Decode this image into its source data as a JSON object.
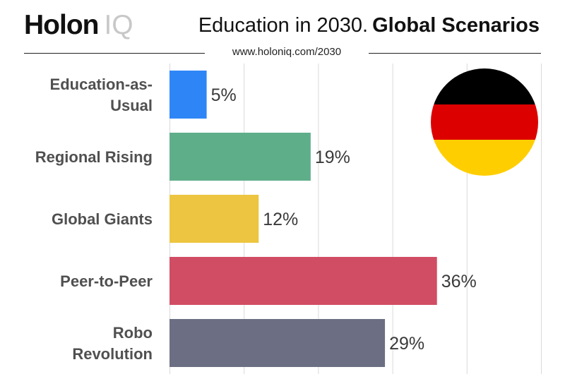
{
  "header": {
    "logo_main": "Holon",
    "logo_accent": "IQ",
    "title_light": "Education in 2030.",
    "title_bold": "Global Scenarios",
    "url": "www.holoniq.com/2030"
  },
  "flag": {
    "icon": "germany-flag-icon",
    "colors": [
      "#000000",
      "#dd0000",
      "#ffce00"
    ]
  },
  "chart_data": {
    "type": "bar",
    "orientation": "horizontal",
    "categories": [
      [
        "Education-as-",
        "Usual"
      ],
      [
        "Regional Rising"
      ],
      [
        "Global Giants"
      ],
      [
        "Peer-to-Peer"
      ],
      [
        "Robo",
        "Revolution"
      ]
    ],
    "values": [
      5,
      19,
      12,
      36,
      29
    ],
    "value_labels": [
      "5%",
      "19%",
      "12%",
      "36%",
      "29%"
    ],
    "colors": [
      "#2e86f6",
      "#5fae8a",
      "#edc540",
      "#d14d63",
      "#6c6f83"
    ],
    "xlim": [
      0,
      50
    ],
    "grid": true,
    "unit": "%"
  }
}
